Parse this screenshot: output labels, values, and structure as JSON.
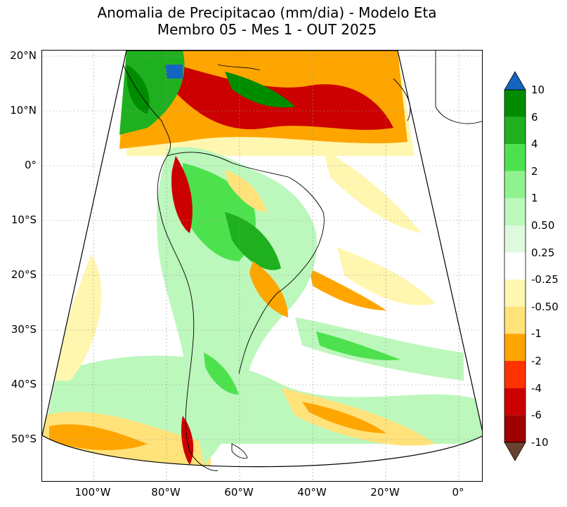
{
  "title": {
    "line1": "Anomalia de Precipitacao (mm/dia) - Modelo Eta",
    "line2": "Membro 05 - Mes 1 - OUT 2025"
  },
  "map": {
    "lat_labels": [
      "20°N",
      "10°N",
      "0°",
      "10°S",
      "20°S",
      "30°S",
      "40°S",
      "50°S"
    ],
    "lon_labels": [
      "100°W",
      "80°W",
      "60°W",
      "40°W",
      "20°W",
      "0°"
    ]
  },
  "colorbar": {
    "labels": [
      "10",
      "6",
      "4",
      "2",
      "1",
      "0.50",
      "0.25",
      "-0.25",
      "-0.50",
      "-1",
      "-2",
      "-4",
      "-6",
      "-10"
    ],
    "colors": {
      "gt10": "#1565c0",
      "6_10": "#008c00",
      "4_6": "#1fb01f",
      "2_4": "#4de24d",
      "1_2": "#8ff28f",
      "0.5_1": "#bcf7bc",
      "0.25_0.5": "#defade",
      "neutral": "#ffffff",
      "m0.25_m0.5": "#fff6b0",
      "m0.5_m1": "#ffe27a",
      "m1_m2": "#ffa500",
      "m2_m4": "#ff3300",
      "m4_m6": "#cc0000",
      "m6_m10": "#a00000",
      "lt_m10": "#6b4232"
    }
  }
}
